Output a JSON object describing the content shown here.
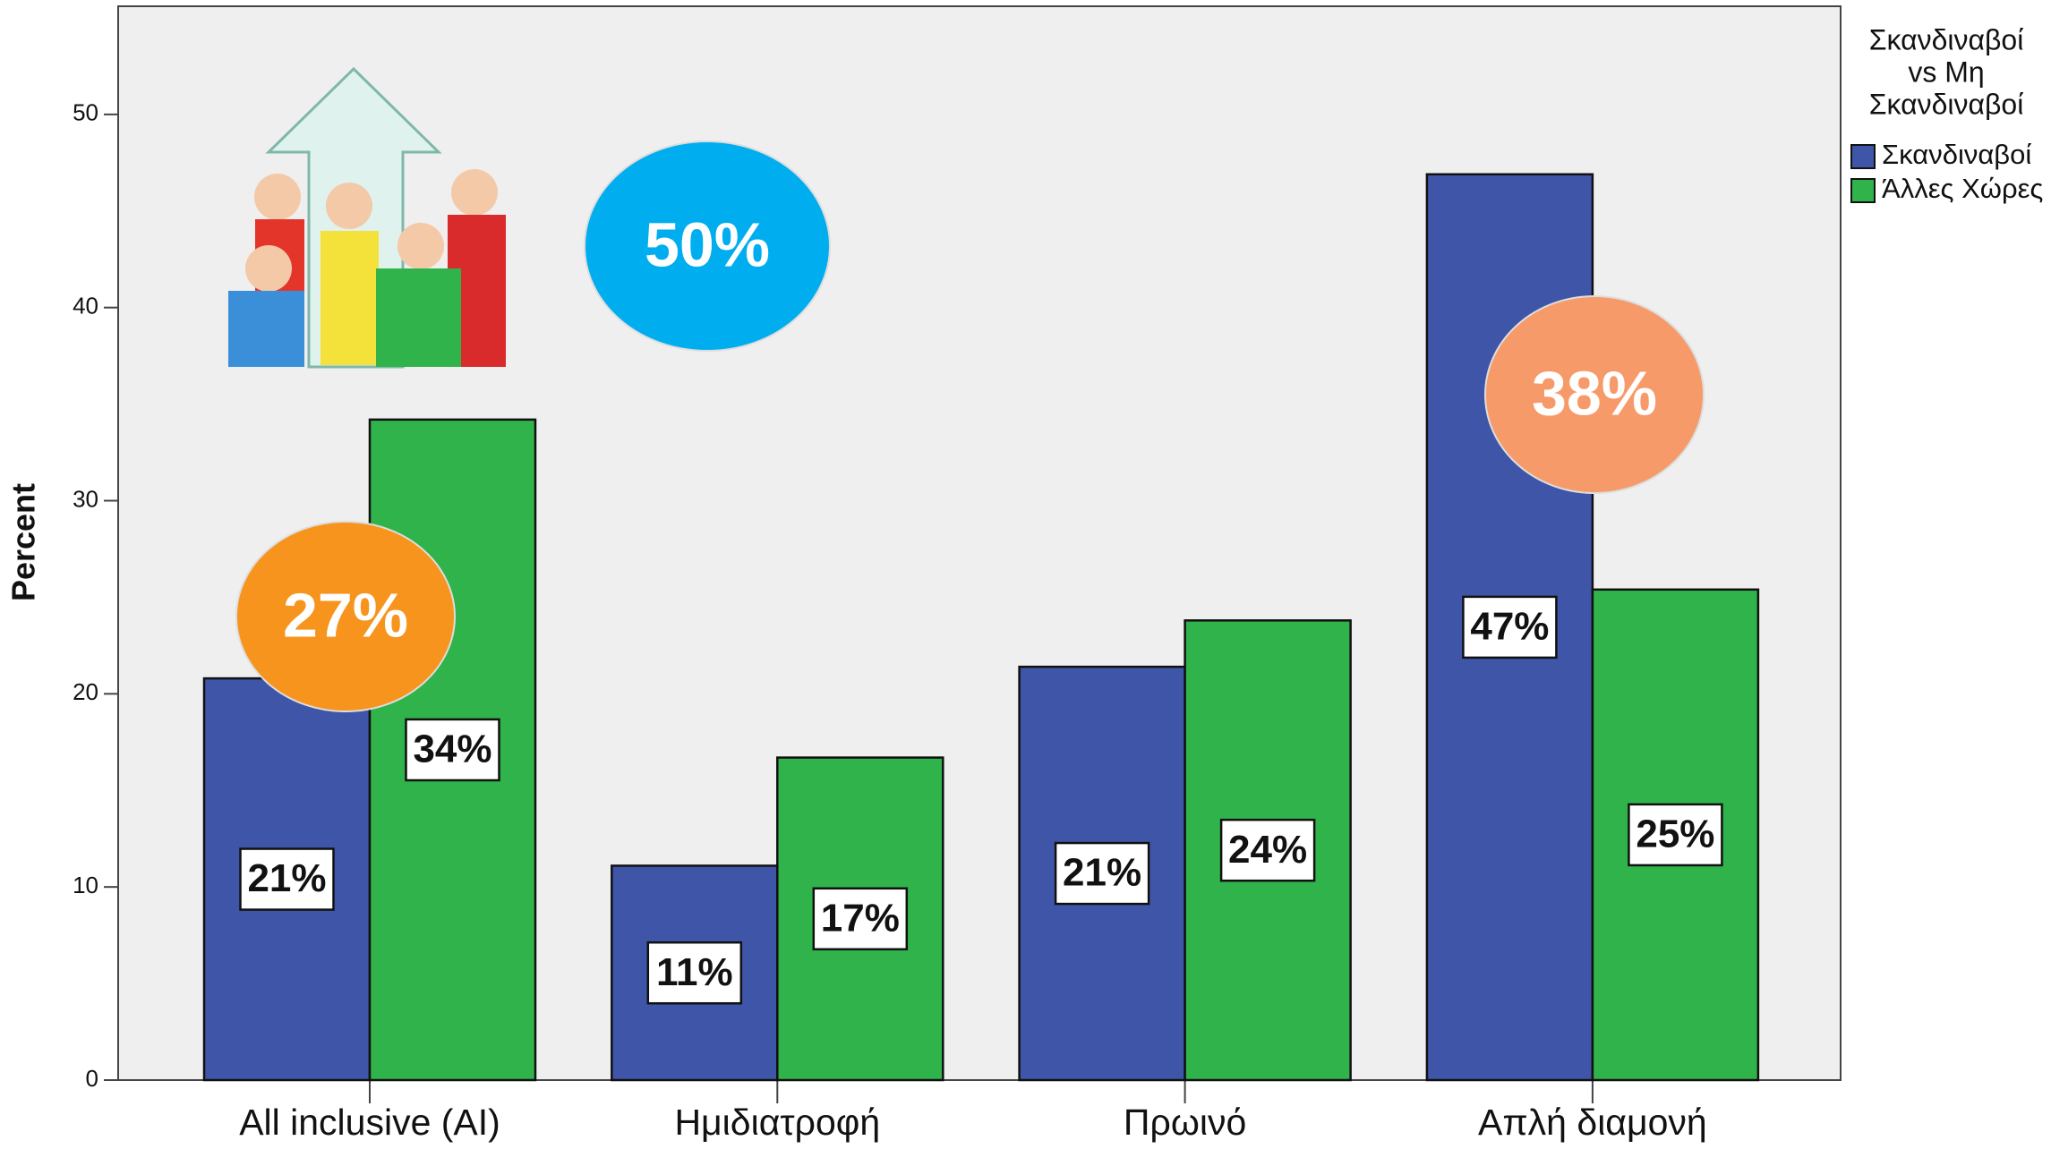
{
  "chart_data": {
    "type": "bar",
    "y_label": "Percent",
    "categories": [
      "All inclusive (AI)",
      "Ημιδιατροφή",
      "Πρωινό",
      "Απλή διαμονή"
    ],
    "series": [
      {
        "name": "Σκανδιναβοί",
        "color": "#3f55a8",
        "values": [
          20.8,
          11.1,
          21.4,
          46.9
        ],
        "value_labels": [
          "21%",
          "11%",
          "21%",
          "47%"
        ]
      },
      {
        "name": "Άλλες Χώρες",
        "color": "#2fb34a",
        "values": [
          34.2,
          16.7,
          23.8,
          25.4
        ],
        "value_labels": [
          "34%",
          "17%",
          "24%",
          "25%"
        ]
      }
    ],
    "ylim": [
      0,
      55.6
    ],
    "yticks": [
      0,
      10,
      20,
      30,
      40,
      50
    ],
    "legend_title": [
      "Σκανδιναβοί",
      "vs Μη",
      "Σκανδιναβοί"
    ],
    "legend_position": "top-right",
    "annotations": [
      {
        "text": "50%",
        "color": "#00aeef"
      },
      {
        "text": "27%",
        "color": "#f7941d"
      },
      {
        "text": "38%",
        "color": "#f79a6a"
      }
    ]
  }
}
